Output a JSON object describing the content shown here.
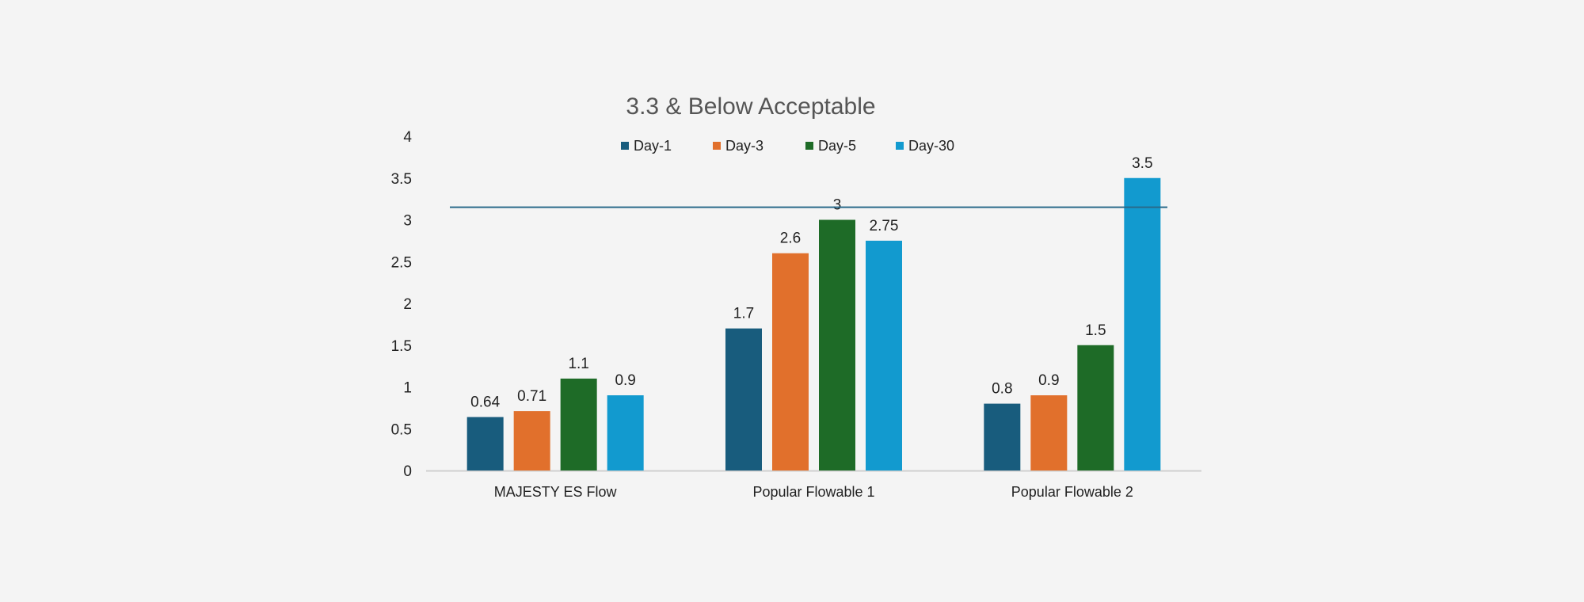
{
  "chart_data": {
    "type": "bar",
    "title": "3.3 & Below Acceptable",
    "categories": [
      "MAJESTY ES Flow",
      "Popular Flowable 1",
      "Popular Flowable 2"
    ],
    "series": [
      {
        "name": "Day-1",
        "color": "#185c7d",
        "values": [
          0.64,
          1.7,
          0.8
        ],
        "labels": [
          "0.64",
          "1.7",
          "0.8"
        ]
      },
      {
        "name": "Day-3",
        "color": "#e1702c",
        "values": [
          0.71,
          2.6,
          0.9
        ],
        "labels": [
          "0.71",
          "2.6",
          "0.9"
        ]
      },
      {
        "name": "Day-5",
        "color": "#1e6b27",
        "values": [
          1.1,
          3,
          1.5
        ],
        "labels": [
          "1.1",
          "3",
          "1.5"
        ]
      },
      {
        "name": "Day-30",
        "color": "#129acf",
        "values": [
          0.9,
          2.75,
          3.5
        ],
        "labels": [
          "0.9",
          "2.75",
          "3.5"
        ]
      }
    ],
    "ylim": [
      0,
      4
    ],
    "yticks": [
      "0",
      "0.5",
      "1",
      "1.5",
      "2",
      "2.5",
      "3",
      "3.5",
      "4"
    ],
    "threshold": {
      "value": 3.15,
      "color": "#2a6a8a"
    },
    "legend_position": "top",
    "grid": false,
    "xlabel": "",
    "ylabel": ""
  }
}
